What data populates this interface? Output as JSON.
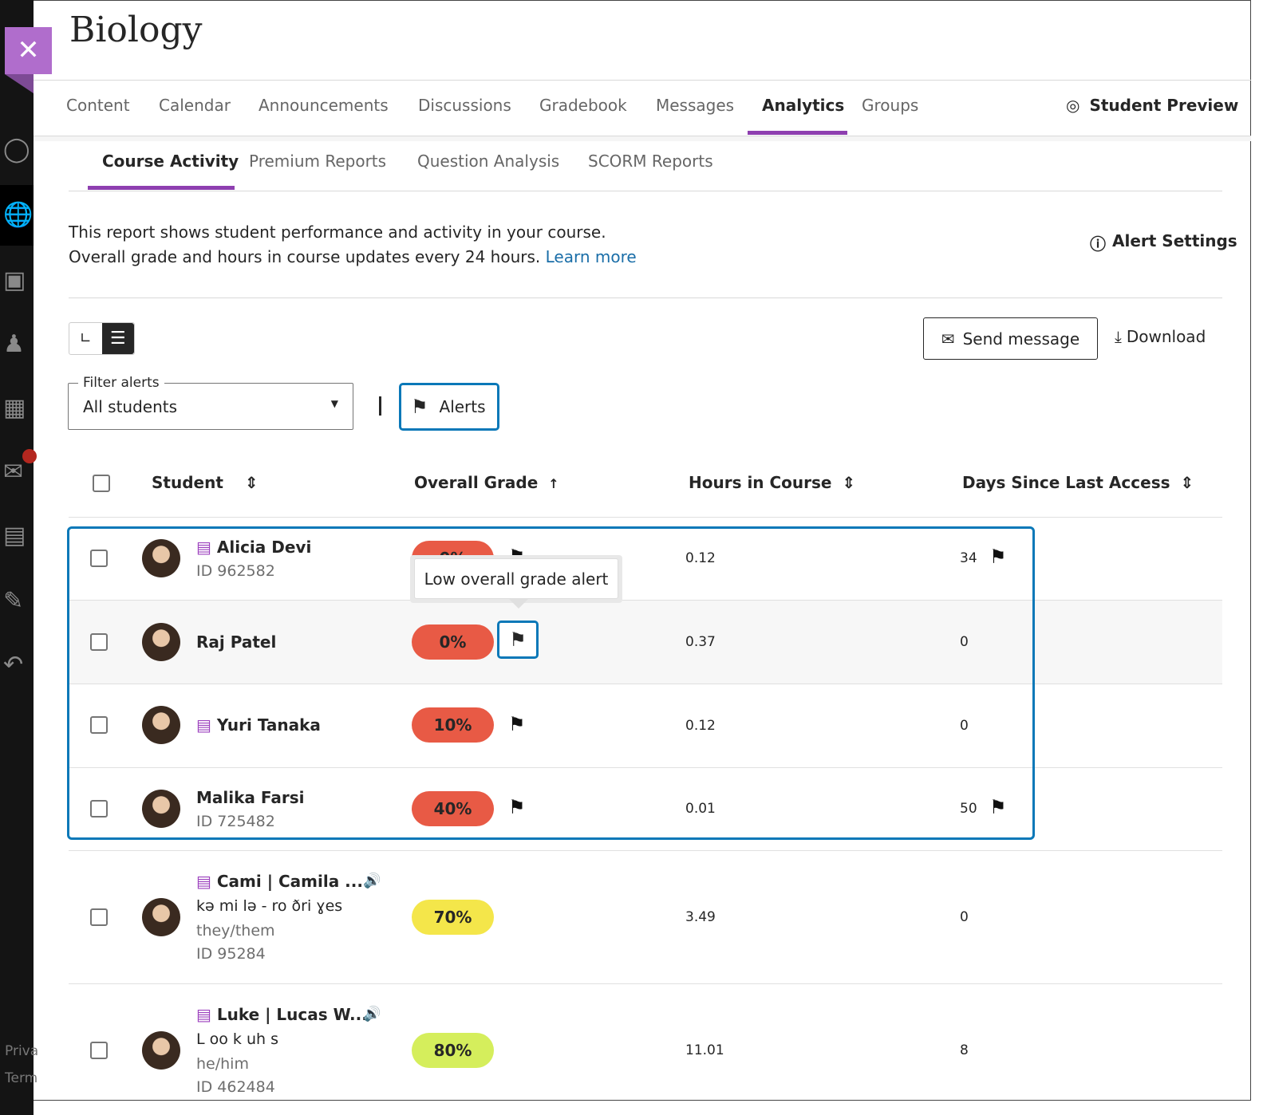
{
  "course_title": "Biology",
  "top_nav": [
    "Content",
    "Calendar",
    "Announcements",
    "Discussions",
    "Gradebook",
    "Messages",
    "Analytics",
    "Groups"
  ],
  "top_nav_active": "Analytics",
  "student_preview": "Student Preview",
  "sub_nav": [
    "Course Activity",
    "Premium Reports",
    "Question Analysis",
    "SCORM Reports"
  ],
  "sub_nav_active": "Course Activity",
  "description": {
    "line1": "This report shows student performance and activity in your course.",
    "line2": "Overall grade and hours in course updates every 24 hours.",
    "link": "Learn more"
  },
  "alert_settings": "Alert Settings",
  "send_message": "Send message",
  "download": "Download",
  "filter": {
    "label": "Filter alerts",
    "value": "All students"
  },
  "alerts_button": "Alerts",
  "columns": {
    "student": "Student",
    "grade": "Overall Grade",
    "hours": "Hours in Course",
    "days": "Days Since Last Access"
  },
  "tooltip": "Low overall grade alert",
  "sidebar_footer": {
    "privacy": "Priva",
    "terms": "Term"
  },
  "colors": {
    "accent": "#8e3fb0",
    "focus": "#0a78b8",
    "grade_low": "#e85a45",
    "grade_mid": "#f4e64a",
    "grade_good": "#d5ee5c"
  },
  "students": [
    {
      "name": "Alicia Devi",
      "id": "ID 962582",
      "grade": "0%",
      "hours": "0.12",
      "days": "34",
      "grade_flag": true,
      "days_flag": true
    },
    {
      "name": "Raj Patel",
      "grade": "0%",
      "hours": "0.37",
      "days": "0",
      "grade_flag": true
    },
    {
      "name": "Yuri Tanaka",
      "grade": "10%",
      "hours": "0.12",
      "days": "0",
      "grade_flag": true
    },
    {
      "name": "Malika Farsi",
      "id": "ID 725482",
      "grade": "40%",
      "hours": "0.01",
      "days": "50",
      "grade_flag": true,
      "days_flag": true
    },
    {
      "name": "Cami | Camila ...",
      "pronunciation": "kə mi lə - ro ðri ɣes",
      "pronouns": "they/them",
      "id": "ID 95284",
      "grade": "70%",
      "hours": "3.49",
      "days": "0"
    },
    {
      "name": "Luke | Lucas W...",
      "pronunciation": "L oo k uh s",
      "pronouns": "he/him",
      "id": "ID 462484",
      "grade": "80%",
      "hours": "11.01",
      "days": "8"
    }
  ]
}
